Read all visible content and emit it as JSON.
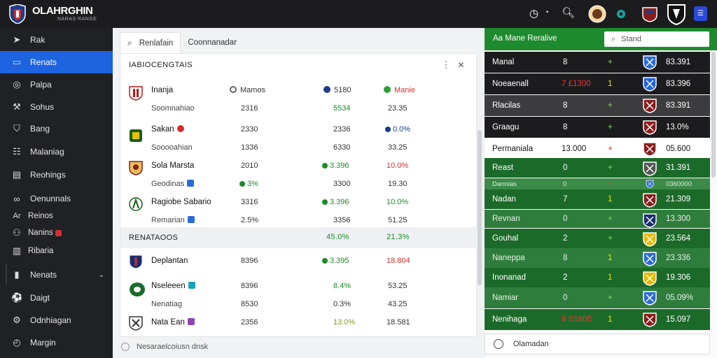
{
  "brand": {
    "name": "OLAHRGHIN",
    "tagline": "NARAS RANGE"
  },
  "sidebar": {
    "items": [
      {
        "label": "Rak",
        "icon": "send-icon"
      },
      {
        "label": "Renats",
        "icon": "document-icon"
      },
      {
        "label": "Palpa",
        "icon": "target-icon"
      },
      {
        "label": "Sohus",
        "icon": "wrench-icon"
      },
      {
        "label": "Bang",
        "icon": "shield-icon"
      },
      {
        "label": "Malaniag",
        "icon": "list-icon"
      },
      {
        "label": "Reohings",
        "icon": "document-icon"
      },
      {
        "label": "Oenunnals",
        "icon": "link-icon"
      },
      {
        "label": "Reinos",
        "prefix": "Ar"
      },
      {
        "label": "Nanins",
        "icon": "people-icon"
      },
      {
        "label": "Ribaria",
        "icon": "chart-icon"
      },
      {
        "label": "Nenats",
        "icon": "bar-icon"
      },
      {
        "label": "Daigt",
        "icon": "soccer-icon"
      },
      {
        "label": "Odnhiagan",
        "icon": "gear-icon"
      },
      {
        "label": "Margin",
        "icon": "clock-icon"
      }
    ]
  },
  "tabs": [
    {
      "label": "Renlafain",
      "icon": "magnify-icon"
    },
    {
      "label": "Coonnanadar"
    }
  ],
  "panel": {
    "title": "IABIOCENGTAIS",
    "groups": [
      {
        "name": "Inanja",
        "sub": "Soomnahiao",
        "c1": "Mamos",
        "c1b": "2316",
        "c2": "5180",
        "c2b": "5534",
        "c3": "Manie",
        "c3b": "23.35"
      },
      {
        "name": "Sakan",
        "sub": "Sooooahian",
        "c1": "2330",
        "c1b": "1336",
        "c2": "2336",
        "c2b": "6330",
        "c3": "0.0%",
        "c3b": "33.25"
      },
      {
        "name": "Sola Marsta",
        "sub": "Geodinas",
        "c1": "2010",
        "c1b": "3%",
        "c2": "3.396",
        "c2b": "3300",
        "c3": "10.0%",
        "c3b": "19.30"
      },
      {
        "name": "Ragiobe Sabario",
        "sub": "Remarian",
        "c1": "3316",
        "c1b": "2.5%",
        "c2": "3.396",
        "c2b": "3356",
        "c3": "10.0%",
        "c3b": "51.25"
      }
    ],
    "section2": {
      "label": "RENATAOOS",
      "c2": "45.0%",
      "c3": "21.3%"
    },
    "groups2": [
      {
        "name": "Deplantan",
        "c1": "8396",
        "c2": "3.395",
        "c3": "18.804"
      },
      {
        "name": "Nseleeen",
        "sub": "Nenatiag",
        "c1": "8396",
        "c1b": "8530",
        "c2": "8.4%",
        "c2b": "0.3%",
        "c3": "53.25",
        "c3b": "43.25"
      },
      {
        "name": "Nata Ean",
        "c1": "2356",
        "c2": "13.0%",
        "c3": "18.581"
      }
    ],
    "footer": "Nesaraelcoiusn dnsk"
  },
  "right": {
    "title": "Aa Mane Reralive",
    "search_placeholder": "Stand",
    "rows": [
      {
        "name": "Manal",
        "v1": "8",
        "v2": "+",
        "v3": "83.391",
        "style": "dark"
      },
      {
        "name": "Noeaenall",
        "v1": "7 £1300",
        "v2": "1",
        "v3": "83.396",
        "style": "dark"
      },
      {
        "name": "Rlacilas",
        "v1": "8",
        "v2": "+",
        "v3": "83.391",
        "style": "gray"
      },
      {
        "name": "Graagu",
        "v1": "8",
        "v2": "+",
        "v3": "13.0%",
        "style": "dark"
      },
      {
        "name": "Permaniala",
        "v1": "13.000",
        "v2": "+",
        "v3": "05.600",
        "style": "white"
      },
      {
        "name": "Reast",
        "v1": "0",
        "v2": "+",
        "v3": "31.391",
        "style": "green"
      },
      {
        "name": "Dannias",
        "v1": "0",
        "v2": "1",
        "v3": "0360000",
        "style": "greenthin"
      },
      {
        "name": "Nadan",
        "v1": "7",
        "v2": "1",
        "v3": "21.309",
        "style": "green"
      },
      {
        "name": "Revnan",
        "v1": "0",
        "v2": "+",
        "v3": "13.300",
        "style": "greenlite"
      },
      {
        "name": "Gouhal",
        "v1": "2",
        "v2": "+",
        "v3": "23.564",
        "style": "green"
      },
      {
        "name": "Naneppa",
        "v1": "8",
        "v2": "1",
        "v3": "23.336",
        "style": "greenlite"
      },
      {
        "name": "Inonanad",
        "v1": "2",
        "v2": "1",
        "v3": "19.306",
        "style": "green"
      },
      {
        "name": "Namiar",
        "v1": "0",
        "v2": "+",
        "v3": "05.09%",
        "style": "greenlite"
      },
      {
        "name": "Nenihaga",
        "v1": "8 S1800",
        "v2": "1",
        "v3": "15.097",
        "style": "green"
      }
    ],
    "footer": "Olamadan"
  },
  "colors": {
    "accent_blue": "#1e63e0",
    "accent_green": "#1e8a2e",
    "dark_bg": "#202124",
    "positive": "#1a8a2a",
    "negative": "#d32f2f"
  }
}
